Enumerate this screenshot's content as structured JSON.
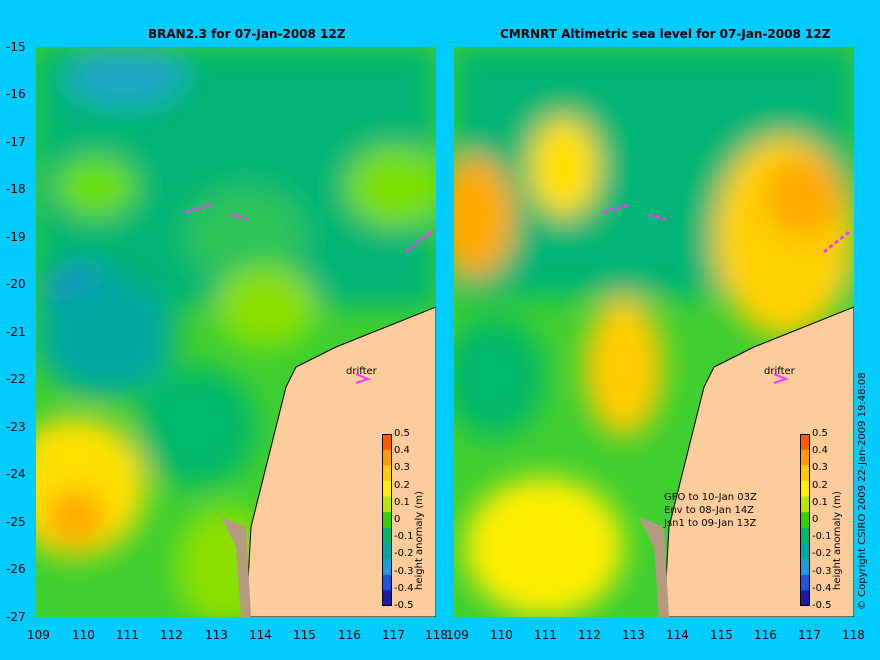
{
  "panels": [
    {
      "title": "BRAN2.3 for 07-Jan-2008 12Z"
    },
    {
      "title": "CMRNRT Altimetric sea level  for 07-Jan-2008 12Z"
    }
  ],
  "axes": {
    "lat_ticks": [
      "-15",
      "-16",
      "-17",
      "-18",
      "-19",
      "-20",
      "-21",
      "-22",
      "-23",
      "-24",
      "-25",
      "-26",
      "-27"
    ],
    "lon_ticks": [
      "109",
      "110",
      "111",
      "112",
      "113",
      "114",
      "115",
      "116",
      "117",
      "118"
    ]
  },
  "map_labels": {
    "drifter": "drifter"
  },
  "colorbar": {
    "title": "height anomaly (m)",
    "ticks": [
      "0.5",
      "0.4",
      "0.3",
      "0.2",
      "0.1",
      "0",
      "-0.1",
      "-0.2",
      "-0.3",
      "-0.4",
      "-0.5"
    ],
    "colors": [
      "#ff5a00",
      "#ff9a00",
      "#ffc800",
      "#ffee00",
      "#b9e600",
      "#33d100",
      "#00b86b",
      "#00a8a0",
      "#1e9bdc",
      "#1d55dc",
      "#1a1aa8"
    ]
  },
  "satellite_notes": [
    "GFO to 10-Jan 03Z",
    "Env to 08-Jan 14Z",
    "Jsn1 to 09-Jan 13Z"
  ],
  "copyright": "© Copyright CSIRO 2009   22-Jan-2009 19:48:08",
  "colors": {
    "background": "#00ccff",
    "land": "#fccc9c",
    "coast_shadow": "#b59a80",
    "drifter": "#ff33ff"
  }
}
